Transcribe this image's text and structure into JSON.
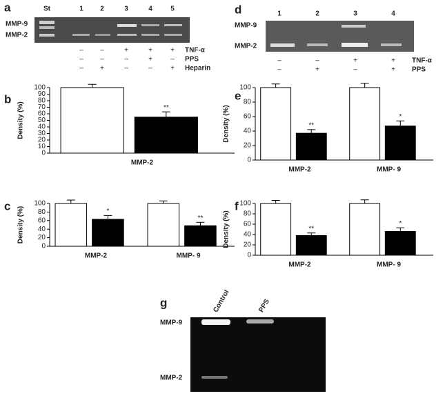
{
  "gels": [
    {
      "label": "a",
      "lanes": [
        "St",
        "1",
        "2",
        "3",
        "4",
        "5"
      ],
      "bands": [
        "MMP-9",
        "MMP-2"
      ],
      "treatments": [
        {
          "name": "TNF-α",
          "signs": [
            "–",
            "–",
            "+",
            "+",
            "+"
          ]
        },
        {
          "name": "PPS",
          "signs": [
            "–",
            "–",
            "–",
            "+",
            "–"
          ]
        },
        {
          "name": "Heparin",
          "signs": [
            "–",
            "+",
            "–",
            "–",
            "+"
          ]
        }
      ]
    },
    {
      "label": "d",
      "lanes": [
        "1",
        "2",
        "3",
        "4"
      ],
      "bands": [
        "MMP-9",
        "MMP-2"
      ],
      "treatments": [
        {
          "name": "TNF-α",
          "signs": [
            "–",
            "–",
            "+",
            "+"
          ]
        },
        {
          "name": "PPS",
          "signs": [
            "–",
            "+",
            "–",
            "+"
          ]
        }
      ]
    },
    {
      "label": "g",
      "lanes": [
        "Control",
        "PPS"
      ],
      "bands": [
        "MMP-9",
        "MMP-2"
      ]
    }
  ],
  "chart_data": [
    {
      "type": "bar",
      "panel": "b",
      "ylabel": "Density (%)",
      "categories": [
        "MMP-2"
      ],
      "ylim": [
        0,
        100
      ],
      "yticks": [
        0,
        10,
        20,
        30,
        40,
        50,
        60,
        70,
        80,
        90,
        100
      ],
      "series": [
        {
          "color": "#ffffff",
          "values": [
            100
          ],
          "errors": [
            5
          ]
        },
        {
          "color": "#000000",
          "values": [
            55
          ],
          "errors": [
            8
          ],
          "value_labels": [
            "**"
          ]
        }
      ]
    },
    {
      "type": "bar",
      "panel": "c",
      "ylabel": "Density (%)",
      "categories": [
        "MMP-2",
        "MMP- 9"
      ],
      "ylim": [
        0,
        100
      ],
      "yticks": [
        0,
        20,
        40,
        60,
        80,
        100
      ],
      "series": [
        {
          "color": "#ffffff",
          "values": [
            100,
            100
          ],
          "errors": [
            8,
            6
          ]
        },
        {
          "color": "#000000",
          "values": [
            63,
            48
          ],
          "errors": [
            9,
            8
          ],
          "value_labels": [
            "*",
            "**"
          ]
        }
      ]
    },
    {
      "type": "bar",
      "panel": "e",
      "ylabel": "Density (%)",
      "categories": [
        "MMP-2",
        "MMP- 9"
      ],
      "ylim": [
        0,
        100
      ],
      "yticks": [
        0,
        20,
        40,
        60,
        80,
        100
      ],
      "series": [
        {
          "color": "#ffffff",
          "values": [
            100,
            100
          ],
          "errors": [
            5,
            6
          ]
        },
        {
          "color": "#000000",
          "values": [
            37,
            47
          ],
          "errors": [
            5,
            7
          ],
          "value_labels": [
            "**",
            "*"
          ]
        }
      ]
    },
    {
      "type": "bar",
      "panel": "f",
      "ylabel": "Density (%)",
      "categories": [
        "MMP-2",
        "MMP- 9"
      ],
      "ylim": [
        0,
        100
      ],
      "yticks": [
        0,
        20,
        40,
        60,
        80,
        100
      ],
      "series": [
        {
          "color": "#ffffff",
          "values": [
            100,
            100
          ],
          "errors": [
            6,
            7
          ]
        },
        {
          "color": "#000000",
          "values": [
            38,
            46
          ],
          "errors": [
            5,
            7
          ],
          "value_labels": [
            "**",
            "*"
          ]
        }
      ]
    }
  ]
}
